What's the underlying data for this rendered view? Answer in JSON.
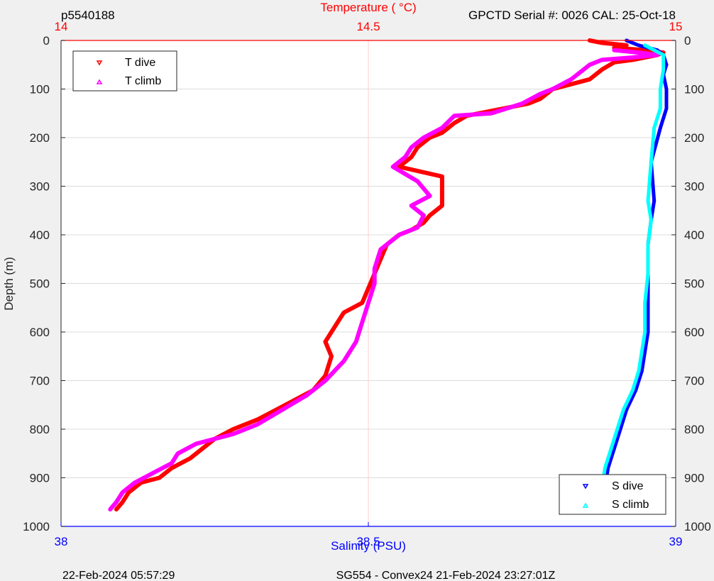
{
  "header": {
    "left": "p5540188",
    "right": "GPCTD Serial #: 0026 CAL: 25-Oct-18"
  },
  "footer": {
    "left": "22-Feb-2024 05:57:29",
    "center": "SG554 - Convex24 21-Feb-2024 23:27:01Z"
  },
  "colors": {
    "t_dive": "#ff0000",
    "t_climb": "#ff00ff",
    "s_dive": "#0000ff",
    "s_climb": "#00ffff",
    "temp_axis": "#ff0000",
    "sal_axis": "#0000ff",
    "depth_axis": "#262626",
    "grid": "#dcdcdc"
  },
  "chart_data": {
    "type": "line",
    "grid": true,
    "ylabel": "Depth (m)",
    "ylim": [
      0,
      1000
    ],
    "yticks": [
      0,
      100,
      200,
      300,
      400,
      500,
      600,
      700,
      800,
      900,
      1000
    ],
    "y_reversed": true,
    "top_axis": {
      "label": "Temperature (   °C)",
      "range": [
        14,
        15
      ],
      "ticks": [
        "14",
        "14.5",
        "15"
      ]
    },
    "bottom_axis": {
      "label": "Salinity (PSU)",
      "range": [
        38,
        39
      ],
      "ticks": [
        "38",
        "38.5",
        "39"
      ]
    },
    "legend_top_left": [
      "T dive",
      "T climb"
    ],
    "legend_bottom_right": [
      "S dive",
      "S climb"
    ],
    "series": [
      {
        "name": "T dive",
        "axis": "temperature",
        "points": [
          [
            14.86,
            0
          ],
          [
            14.88,
            5
          ],
          [
            14.92,
            10
          ],
          [
            14.9,
            15
          ],
          [
            14.95,
            20
          ],
          [
            14.98,
            25
          ],
          [
            14.97,
            30
          ],
          [
            14.93,
            40
          ],
          [
            14.9,
            45
          ],
          [
            14.88,
            60
          ],
          [
            14.86,
            80
          ],
          [
            14.83,
            90
          ],
          [
            14.8,
            100
          ],
          [
            14.78,
            120
          ],
          [
            14.76,
            130
          ],
          [
            14.72,
            140
          ],
          [
            14.66,
            155
          ],
          [
            14.64,
            170
          ],
          [
            14.62,
            190
          ],
          [
            14.6,
            200
          ],
          [
            14.58,
            220
          ],
          [
            14.57,
            240
          ],
          [
            14.55,
            260
          ],
          [
            14.62,
            280
          ],
          [
            14.62,
            300
          ],
          [
            14.62,
            340
          ],
          [
            14.6,
            360
          ],
          [
            14.59,
            375
          ],
          [
            14.57,
            390
          ],
          [
            14.55,
            400
          ],
          [
            14.53,
            420
          ],
          [
            14.52,
            450
          ],
          [
            14.51,
            480
          ],
          [
            14.5,
            510
          ],
          [
            14.49,
            540
          ],
          [
            14.46,
            560
          ],
          [
            14.44,
            600
          ],
          [
            14.43,
            620
          ],
          [
            14.44,
            650
          ],
          [
            14.43,
            690
          ],
          [
            14.41,
            720
          ],
          [
            14.38,
            740
          ],
          [
            14.35,
            760
          ],
          [
            14.32,
            780
          ],
          [
            14.28,
            800
          ],
          [
            14.25,
            820
          ],
          [
            14.23,
            840
          ],
          [
            14.21,
            860
          ],
          [
            14.18,
            880
          ],
          [
            14.16,
            900
          ],
          [
            14.13,
            910
          ],
          [
            14.11,
            930
          ],
          [
            14.1,
            950
          ],
          [
            14.09,
            965
          ]
        ]
      },
      {
        "name": "T climb",
        "axis": "temperature",
        "points": [
          [
            14.9,
            20
          ],
          [
            14.94,
            25
          ],
          [
            14.97,
            30
          ],
          [
            14.93,
            35
          ],
          [
            14.88,
            40
          ],
          [
            14.86,
            50
          ],
          [
            14.83,
            80
          ],
          [
            14.8,
            100
          ],
          [
            14.78,
            110
          ],
          [
            14.75,
            130
          ],
          [
            14.7,
            150
          ],
          [
            14.64,
            155
          ],
          [
            14.62,
            180
          ],
          [
            14.59,
            200
          ],
          [
            14.57,
            220
          ],
          [
            14.56,
            240
          ],
          [
            14.54,
            260
          ],
          [
            14.58,
            290
          ],
          [
            14.6,
            320
          ],
          [
            14.57,
            340
          ],
          [
            14.59,
            360
          ],
          [
            14.58,
            385
          ],
          [
            14.55,
            400
          ],
          [
            14.52,
            430
          ],
          [
            14.51,
            470
          ],
          [
            14.51,
            500
          ],
          [
            14.5,
            540
          ],
          [
            14.49,
            580
          ],
          [
            14.48,
            620
          ],
          [
            14.46,
            660
          ],
          [
            14.43,
            700
          ],
          [
            14.4,
            730
          ],
          [
            14.36,
            760
          ],
          [
            14.32,
            790
          ],
          [
            14.28,
            810
          ],
          [
            14.22,
            830
          ],
          [
            14.19,
            850
          ],
          [
            14.18,
            870
          ],
          [
            14.15,
            890
          ],
          [
            14.12,
            910
          ],
          [
            14.1,
            930
          ],
          [
            14.09,
            950
          ],
          [
            14.08,
            965
          ]
        ]
      },
      {
        "name": "S dive",
        "axis": "salinity",
        "points": [
          [
            38.92,
            0
          ],
          [
            38.94,
            10
          ],
          [
            38.97,
            20
          ],
          [
            38.98,
            30
          ],
          [
            38.985,
            50
          ],
          [
            38.98,
            70
          ],
          [
            38.985,
            100
          ],
          [
            38.985,
            140
          ],
          [
            38.975,
            180
          ],
          [
            38.96,
            250
          ],
          [
            38.965,
            330
          ],
          [
            38.96,
            370
          ],
          [
            38.955,
            420
          ],
          [
            38.955,
            480
          ],
          [
            38.955,
            540
          ],
          [
            38.955,
            600
          ],
          [
            38.945,
            680
          ],
          [
            38.935,
            720
          ],
          [
            38.92,
            760
          ],
          [
            38.91,
            800
          ],
          [
            38.9,
            840
          ],
          [
            38.89,
            880
          ],
          [
            38.885,
            920
          ],
          [
            38.88,
            950
          ],
          [
            38.88,
            965
          ]
        ]
      },
      {
        "name": "S climb",
        "axis": "salinity",
        "points": [
          [
            38.95,
            10
          ],
          [
            38.965,
            20
          ],
          [
            38.98,
            30
          ],
          [
            38.98,
            60
          ],
          [
            38.975,
            100
          ],
          [
            38.975,
            140
          ],
          [
            38.965,
            180
          ],
          [
            38.96,
            250
          ],
          [
            38.955,
            330
          ],
          [
            38.96,
            370
          ],
          [
            38.955,
            420
          ],
          [
            38.955,
            480
          ],
          [
            38.95,
            540
          ],
          [
            38.95,
            600
          ],
          [
            38.94,
            680
          ],
          [
            38.93,
            720
          ],
          [
            38.915,
            760
          ],
          [
            38.905,
            800
          ],
          [
            38.895,
            840
          ],
          [
            38.885,
            880
          ],
          [
            38.88,
            920
          ],
          [
            38.875,
            950
          ],
          [
            38.875,
            965
          ]
        ]
      }
    ]
  }
}
